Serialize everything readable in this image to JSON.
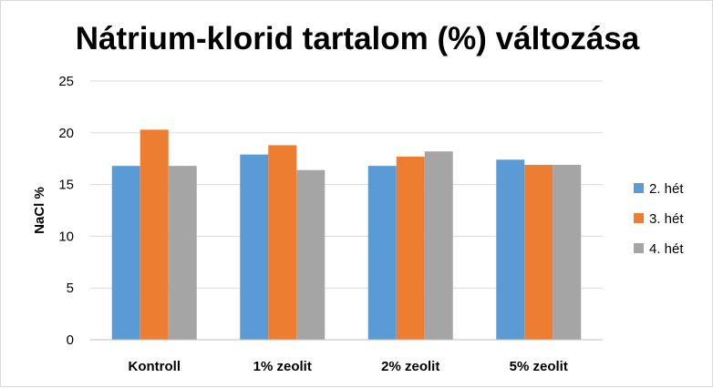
{
  "chart_data": {
    "type": "bar",
    "title": "Nátrium-klorid tartalom (%) változása",
    "xlabel": "",
    "ylabel": "NaCl %",
    "ylim": [
      0,
      25
    ],
    "yticks": [
      0,
      5,
      10,
      15,
      20,
      25
    ],
    "grid": true,
    "legend_position": "right",
    "categories": [
      "Kontroll",
      "1% zeolit",
      "2% zeolit",
      "5% zeolit"
    ],
    "series": [
      {
        "name": "2. hét",
        "color": "#5b9bd5",
        "values": [
          16.8,
          17.9,
          16.8,
          17.4
        ]
      },
      {
        "name": "3. hét",
        "color": "#ed7d31",
        "values": [
          20.3,
          18.8,
          17.7,
          16.9
        ]
      },
      {
        "name": "4. hét",
        "color": "#a5a5a5",
        "values": [
          16.8,
          16.4,
          18.2,
          16.9
        ]
      }
    ]
  }
}
